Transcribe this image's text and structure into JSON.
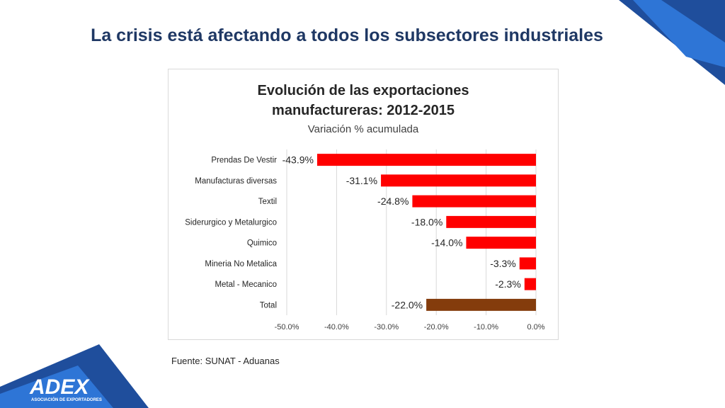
{
  "slide": {
    "title": "La crisis está afectando a todos los subsectores industriales",
    "source": "Fuente: SUNAT - Aduanas",
    "logo_text": "ADEX",
    "logo_subtext": "ASOCIACIÓN DE EXPORTADORES"
  },
  "colors": {
    "title": "#1f3864",
    "bar": "#ff0000",
    "total_bar": "#843c0c",
    "corner_dark": "#1f4e9c",
    "corner_light": "#2e75d6"
  },
  "chart_data": {
    "type": "bar",
    "orientation": "horizontal",
    "title_line1": "Evolución de las exportaciones",
    "title_line2": "manufactureras: 2012-2015",
    "subtitle": "Variación % acumulada",
    "categories": [
      "Prendas De Vestir",
      "Manufacturas diversas",
      "Textil",
      "Siderurgico y Metalurgico",
      "Quimico",
      "Mineria No Metalica",
      "Metal - Mecanico",
      "Total"
    ],
    "values": [
      -43.9,
      -31.1,
      -24.8,
      -18.0,
      -14.0,
      -3.3,
      -2.3,
      -22.0
    ],
    "data_labels": [
      "-43.9%",
      "-31.1%",
      "-24.8%",
      "-18.0%",
      "-14.0%",
      "-3.3%",
      "-2.3%",
      "-22.0%"
    ],
    "xlim": [
      -50,
      0
    ],
    "xticks": [
      -50,
      -40,
      -30,
      -20,
      -10,
      0
    ],
    "xtick_labels": [
      "-50.0%",
      "-40.0%",
      "-30.0%",
      "-20.0%",
      "-10.0%",
      "0.0%"
    ],
    "grid": true,
    "highlight_category": "Total"
  }
}
